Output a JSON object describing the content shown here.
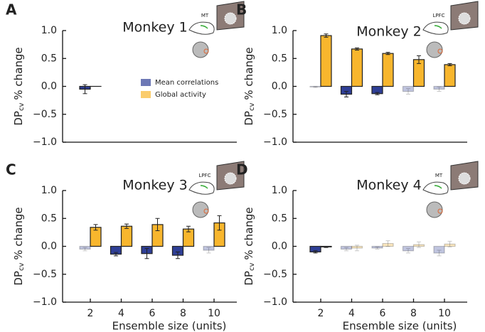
{
  "chart_data": [
    {
      "type": "bar",
      "panel": "A",
      "title": "Monkey 1",
      "area": "MT",
      "ylabel": "DP",
      "ylabel_sub": "cv",
      "ylabel_suffix": "% change",
      "categories": [
        null,
        null,
        null,
        null,
        null
      ],
      "legend": true,
      "ylim": [
        -1.0,
        1.0
      ],
      "yticks": [
        {
          "value": -1.0,
          "label": "−1.0"
        },
        {
          "value": -0.5,
          "label": "−0.5"
        },
        {
          "value": 0.0,
          "label": "0.0"
        },
        {
          "value": 0.5,
          "label": "0.5"
        },
        {
          "value": 1.0,
          "label": "1.0"
        }
      ],
      "series": [
        {
          "name": "Mean correlations",
          "color": "#2f3f96",
          "values": [
            -0.05,
            null,
            null,
            null,
            null
          ],
          "errors": [
            0.08,
            null,
            null,
            null,
            null
          ],
          "alpha": [
            1,
            1,
            1,
            1,
            1
          ]
        },
        {
          "name": "Global activity",
          "color": "#f8b62d",
          "values": [
            0.0,
            null,
            null,
            null,
            null
          ],
          "errors": [
            0.0,
            null,
            null,
            null,
            null
          ],
          "alpha": [
            1,
            1,
            1,
            1,
            1
          ]
        }
      ]
    },
    {
      "type": "bar",
      "panel": "B",
      "title": "Monkey 2",
      "area": "LPFC",
      "ylabel": "DP",
      "ylabel_sub": "cv",
      "ylabel_suffix": "% change",
      "categories": [
        null,
        null,
        null,
        null,
        null
      ],
      "legend": false,
      "ylim": [
        -1.0,
        1.0
      ],
      "yticks": [
        {
          "value": -1.0,
          "label": "−1.0"
        },
        {
          "value": -0.5,
          "label": "−0.5"
        },
        {
          "value": 0.0,
          "label": "0.0"
        },
        {
          "value": 0.5,
          "label": "0.5"
        },
        {
          "value": 1.0,
          "label": "1.0"
        }
      ],
      "series": [
        {
          "name": "Mean correlations",
          "color": "#2f3f96",
          "values": [
            -0.01,
            -0.14,
            -0.13,
            -0.09,
            -0.05
          ],
          "errors": [
            0.01,
            0.05,
            0.02,
            0.05,
            0.04
          ],
          "alpha": [
            0.3,
            1,
            1,
            0.3,
            0.3
          ]
        },
        {
          "name": "Global activity",
          "color": "#f8b62d",
          "values": [
            0.91,
            0.67,
            0.59,
            0.48,
            0.39
          ],
          "errors": [
            0.03,
            0.02,
            0.02,
            0.07,
            0.02
          ],
          "alpha": [
            1,
            1,
            1,
            1,
            1
          ]
        }
      ]
    },
    {
      "type": "bar",
      "panel": "C",
      "title": "Monkey 3",
      "area": "LPFC",
      "ylabel": "DP",
      "ylabel_sub": "cv",
      "ylabel_suffix": "% change",
      "xlabel": "Ensemble size (units)",
      "categories": [
        "2",
        "4",
        "6",
        "8",
        "10"
      ],
      "legend": false,
      "ylim": [
        -1.0,
        1.0
      ],
      "yticks": [
        {
          "value": -1.0,
          "label": "−1.0"
        },
        {
          "value": -0.5,
          "label": "−0.5"
        },
        {
          "value": 0.0,
          "label": "0.0"
        },
        {
          "value": 0.5,
          "label": "0.5"
        },
        {
          "value": 1.0,
          "label": "1.0"
        }
      ],
      "series": [
        {
          "name": "Mean correlations",
          "color": "#2f3f96",
          "values": [
            -0.05,
            -0.14,
            -0.13,
            -0.16,
            -0.07
          ],
          "errors": [
            0.03,
            0.03,
            0.09,
            0.06,
            0.05
          ],
          "alpha": [
            0.3,
            1,
            1,
            1,
            0.3
          ]
        },
        {
          "name": "Global activity",
          "color": "#f8b62d",
          "values": [
            0.34,
            0.36,
            0.39,
            0.31,
            0.42
          ],
          "errors": [
            0.05,
            0.04,
            0.11,
            0.05,
            0.13
          ],
          "alpha": [
            1,
            1,
            1,
            1,
            1
          ]
        }
      ]
    },
    {
      "type": "bar",
      "panel": "D",
      "title": "Monkey 4",
      "area": "MT",
      "ylabel": "DP",
      "ylabel_sub": "cv",
      "ylabel_suffix": "% change",
      "xlabel": "Ensemble size (units)",
      "categories": [
        "2",
        "4",
        "6",
        "8",
        "10"
      ],
      "legend": false,
      "ylim": [
        -1.0,
        1.0
      ],
      "yticks": [
        {
          "value": -1.0,
          "label": "−1.0"
        },
        {
          "value": -0.5,
          "label": "−0.5"
        },
        {
          "value": 0.0,
          "label": "0.0"
        },
        {
          "value": 0.5,
          "label": "0.5"
        },
        {
          "value": 1.0,
          "label": "1.0"
        }
      ],
      "series": [
        {
          "name": "Mean correlations",
          "color": "#2f3f96",
          "values": [
            -0.1,
            -0.05,
            -0.03,
            -0.08,
            -0.12
          ],
          "errors": [
            0.02,
            0.03,
            0.02,
            0.04,
            0.05
          ],
          "alpha": [
            1,
            0.3,
            0.3,
            0.3,
            0.3
          ]
        },
        {
          "name": "Global activity",
          "color": "#f8b62d",
          "values": [
            -0.01,
            -0.03,
            0.05,
            0.03,
            0.04
          ],
          "errors": [
            0.01,
            0.05,
            0.05,
            0.05,
            0.05
          ],
          "alpha": [
            1,
            0.3,
            0.3,
            0.3,
            0.3
          ]
        }
      ]
    }
  ]
}
